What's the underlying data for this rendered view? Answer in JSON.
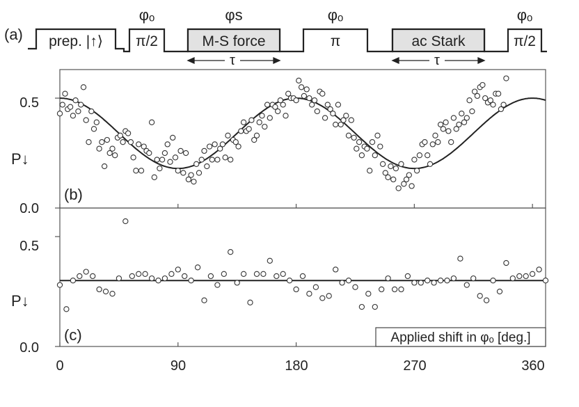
{
  "pulse_sequence": {
    "panel_label": "(a)",
    "pulses": [
      {
        "phase": "",
        "label": "prep. |↑⟩",
        "shaded": false
      },
      {
        "phase": "φₒ",
        "label": "π/2",
        "shaded": false
      },
      {
        "phase": "φs",
        "label": "M-S force",
        "shaded": true,
        "duration": "τ"
      },
      {
        "phase": "φₒ",
        "label": "π",
        "shaded": false
      },
      {
        "phase": "",
        "label": "ac Stark",
        "shaded": true,
        "duration": "τ"
      },
      {
        "phase": "φₒ",
        "label": "π/2",
        "shaded": false
      }
    ]
  },
  "colors": {
    "line": "#222222",
    "marker_edge": "#333333",
    "shaded_pulse": "#e2e2e2",
    "axis": "#555555"
  },
  "chart_data": [
    {
      "type": "scatter",
      "panel_label": "(b)",
      "ylabel": "P↓",
      "xlim": [
        0,
        370
      ],
      "ylim": [
        0.0,
        0.63
      ],
      "yticks": [
        "0.0",
        "0.5"
      ],
      "ytick_values": [
        0.0,
        0.5
      ],
      "fit": {
        "type": "line",
        "description": "0.34 + 0.16·cos(2x)",
        "mean": 0.34,
        "amplitude": 0.16,
        "frequency": 2
      },
      "points": [
        [
          0,
          0.43
        ],
        [
          2,
          0.47
        ],
        [
          4,
          0.52
        ],
        [
          6,
          0.45
        ],
        [
          8,
          0.46
        ],
        [
          10,
          0.42
        ],
        [
          12,
          0.49
        ],
        [
          14,
          0.44
        ],
        [
          16,
          0.47
        ],
        [
          18,
          0.55
        ],
        [
          20,
          0.4
        ],
        [
          22,
          0.3
        ],
        [
          24,
          0.44
        ],
        [
          26,
          0.36
        ],
        [
          28,
          0.39
        ],
        [
          30,
          0.27
        ],
        [
          32,
          0.3
        ],
        [
          34,
          0.19
        ],
        [
          36,
          0.31
        ],
        [
          38,
          0.25
        ],
        [
          40,
          0.27
        ],
        [
          42,
          0.24
        ],
        [
          44,
          0.32
        ],
        [
          46,
          0.33
        ],
        [
          48,
          0.3
        ],
        [
          50,
          0.35
        ],
        [
          52,
          0.34
        ],
        [
          54,
          0.3
        ],
        [
          56,
          0.23
        ],
        [
          58,
          0.17
        ],
        [
          60,
          0.29
        ],
        [
          62,
          0.17
        ],
        [
          64,
          0.28
        ],
        [
          66,
          0.26
        ],
        [
          68,
          0.25
        ],
        [
          70,
          0.39
        ],
        [
          72,
          0.14
        ],
        [
          74,
          0.22
        ],
        [
          76,
          0.18
        ],
        [
          78,
          0.22
        ],
        [
          80,
          0.25
        ],
        [
          82,
          0.29
        ],
        [
          84,
          0.21
        ],
        [
          86,
          0.32
        ],
        [
          88,
          0.23
        ],
        [
          90,
          0.17
        ],
        [
          92,
          0.26
        ],
        [
          94,
          0.16
        ],
        [
          96,
          0.25
        ],
        [
          98,
          0.13
        ],
        [
          100,
          0.15
        ],
        [
          102,
          0.12
        ],
        [
          104,
          0.2
        ],
        [
          106,
          0.16
        ],
        [
          108,
          0.22
        ],
        [
          110,
          0.26
        ],
        [
          112,
          0.19
        ],
        [
          114,
          0.28
        ],
        [
          116,
          0.22
        ],
        [
          118,
          0.29
        ],
        [
          120,
          0.22
        ],
        [
          122,
          0.27
        ],
        [
          124,
          0.29
        ],
        [
          126,
          0.23
        ],
        [
          128,
          0.33
        ],
        [
          130,
          0.22
        ],
        [
          132,
          0.31
        ],
        [
          134,
          0.3
        ],
        [
          136,
          0.28
        ],
        [
          138,
          0.35
        ],
        [
          140,
          0.39
        ],
        [
          142,
          0.35
        ],
        [
          144,
          0.36
        ],
        [
          146,
          0.4
        ],
        [
          148,
          0.31
        ],
        [
          150,
          0.33
        ],
        [
          152,
          0.39
        ],
        [
          154,
          0.42
        ],
        [
          156,
          0.37
        ],
        [
          158,
          0.47
        ],
        [
          160,
          0.41
        ],
        [
          162,
          0.47
        ],
        [
          164,
          0.46
        ],
        [
          166,
          0.44
        ],
        [
          168,
          0.49
        ],
        [
          170,
          0.47
        ],
        [
          172,
          0.42
        ],
        [
          174,
          0.52
        ],
        [
          176,
          0.5
        ],
        [
          178,
          0.5
        ],
        [
          180,
          0.49
        ],
        [
          182,
          0.58
        ],
        [
          184,
          0.55
        ],
        [
          186,
          0.51
        ],
        [
          188,
          0.54
        ],
        [
          190,
          0.5
        ],
        [
          192,
          0.47
        ],
        [
          194,
          0.49
        ],
        [
          196,
          0.44
        ],
        [
          198,
          0.53
        ],
        [
          200,
          0.52
        ],
        [
          202,
          0.41
        ],
        [
          204,
          0.47
        ],
        [
          206,
          0.45
        ],
        [
          208,
          0.43
        ],
        [
          210,
          0.38
        ],
        [
          212,
          0.47
        ],
        [
          214,
          0.38
        ],
        [
          216,
          0.4
        ],
        [
          218,
          0.42
        ],
        [
          220,
          0.33
        ],
        [
          222,
          0.4
        ],
        [
          224,
          0.32
        ],
        [
          226,
          0.27
        ],
        [
          228,
          0.3
        ],
        [
          230,
          0.24
        ],
        [
          232,
          0.28
        ],
        [
          234,
          0.27
        ],
        [
          236,
          0.17
        ],
        [
          238,
          0.3
        ],
        [
          240,
          0.24
        ],
        [
          242,
          0.33
        ],
        [
          244,
          0.28
        ],
        [
          246,
          0.2
        ],
        [
          248,
          0.16
        ],
        [
          250,
          0.14
        ],
        [
          252,
          0.19
        ],
        [
          254,
          0.13
        ],
        [
          256,
          0.18
        ],
        [
          258,
          0.09
        ],
        [
          260,
          0.2
        ],
        [
          262,
          0.11
        ],
        [
          264,
          0.13
        ],
        [
          266,
          0.15
        ],
        [
          268,
          0.1
        ],
        [
          270,
          0.22
        ],
        [
          272,
          0.17
        ],
        [
          274,
          0.24
        ],
        [
          276,
          0.29
        ],
        [
          278,
          0.3
        ],
        [
          280,
          0.24
        ],
        [
          282,
          0.2
        ],
        [
          284,
          0.29
        ],
        [
          286,
          0.33
        ],
        [
          288,
          0.3
        ],
        [
          290,
          0.38
        ],
        [
          292,
          0.36
        ],
        [
          294,
          0.39
        ],
        [
          296,
          0.35
        ],
        [
          298,
          0.3
        ],
        [
          300,
          0.41
        ],
        [
          302,
          0.36
        ],
        [
          304,
          0.38
        ],
        [
          306,
          0.43
        ],
        [
          308,
          0.39
        ],
        [
          310,
          0.41
        ],
        [
          312,
          0.49
        ],
        [
          314,
          0.44
        ],
        [
          316,
          0.53
        ],
        [
          318,
          0.51
        ],
        [
          320,
          0.55
        ],
        [
          322,
          0.56
        ],
        [
          324,
          0.5
        ],
        [
          326,
          0.48
        ],
        [
          328,
          0.49
        ],
        [
          330,
          0.47
        ],
        [
          332,
          0.52
        ],
        [
          334,
          0.52
        ],
        [
          336,
          0.45
        ],
        [
          338,
          0.47
        ],
        [
          340,
          0.59
        ]
      ]
    },
    {
      "type": "scatter",
      "panel_label": "(c)",
      "ylabel": "P↓",
      "xlabel": "Applied shift in φₒ [deg.]",
      "xlim": [
        0,
        370
      ],
      "ylim": [
        0.0,
        0.63
      ],
      "xticks": [
        "0",
        "90",
        "180",
        "270",
        "360"
      ],
      "xtick_values": [
        0,
        90,
        180,
        270,
        360
      ],
      "yticks": [
        "0.0",
        "0.5"
      ],
      "ytick_values": [
        0.0,
        0.5
      ],
      "fit": {
        "type": "line",
        "description": "constant",
        "value": 0.3
      },
      "points": [
        [
          0,
          0.28
        ],
        [
          5,
          0.17
        ],
        [
          10,
          0.3
        ],
        [
          15,
          0.32
        ],
        [
          20,
          0.34
        ],
        [
          25,
          0.32
        ],
        [
          30,
          0.26
        ],
        [
          35,
          0.25
        ],
        [
          40,
          0.24
        ],
        [
          45,
          0.31
        ],
        [
          50,
          0.57
        ],
        [
          55,
          0.32
        ],
        [
          60,
          0.33
        ],
        [
          65,
          0.33
        ],
        [
          70,
          0.31
        ],
        [
          75,
          0.3
        ],
        [
          80,
          0.31
        ],
        [
          85,
          0.33
        ],
        [
          90,
          0.35
        ],
        [
          95,
          0.32
        ],
        [
          100,
          0.3
        ],
        [
          105,
          0.36
        ],
        [
          110,
          0.21
        ],
        [
          115,
          0.32
        ],
        [
          120,
          0.28
        ],
        [
          125,
          0.33
        ],
        [
          130,
          0.43
        ],
        [
          135,
          0.29
        ],
        [
          140,
          0.33
        ],
        [
          145,
          0.2
        ],
        [
          150,
          0.33
        ],
        [
          155,
          0.33
        ],
        [
          160,
          0.39
        ],
        [
          165,
          0.32
        ],
        [
          170,
          0.33
        ],
        [
          175,
          0.3
        ],
        [
          180,
          0.26
        ],
        [
          185,
          0.32
        ],
        [
          190,
          0.24
        ],
        [
          195,
          0.27
        ],
        [
          200,
          0.22
        ],
        [
          205,
          0.23
        ],
        [
          210,
          0.35
        ],
        [
          215,
          0.29
        ],
        [
          220,
          0.3
        ],
        [
          225,
          0.27
        ],
        [
          230,
          0.18
        ],
        [
          235,
          0.24
        ],
        [
          240,
          0.18
        ],
        [
          245,
          0.26
        ],
        [
          250,
          0.31
        ],
        [
          255,
          0.26
        ],
        [
          260,
          0.26
        ],
        [
          265,
          0.32
        ],
        [
          270,
          0.29
        ],
        [
          275,
          0.29
        ],
        [
          280,
          0.3
        ],
        [
          285,
          0.29
        ],
        [
          290,
          0.3
        ],
        [
          295,
          0.3
        ],
        [
          300,
          0.31
        ],
        [
          305,
          0.4
        ],
        [
          310,
          0.28
        ],
        [
          315,
          0.31
        ],
        [
          320,
          0.23
        ],
        [
          325,
          0.21
        ],
        [
          330,
          0.3
        ],
        [
          335,
          0.25
        ],
        [
          340,
          0.38
        ],
        [
          345,
          0.31
        ],
        [
          350,
          0.32
        ],
        [
          355,
          0.32
        ],
        [
          360,
          0.33
        ],
        [
          365,
          0.35
        ],
        [
          370,
          0.3
        ]
      ]
    }
  ]
}
